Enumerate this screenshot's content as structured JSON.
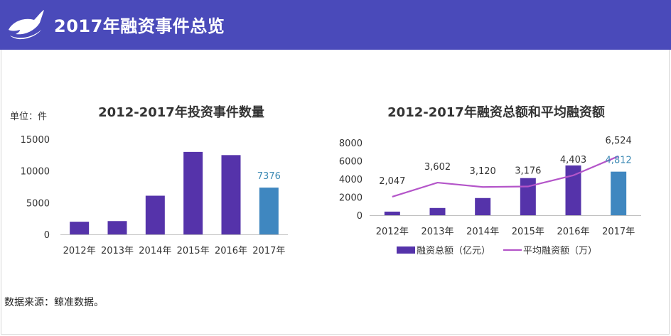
{
  "header": {
    "title": "2017年融资事件总览",
    "logo_icon": "whale-icon"
  },
  "colors": {
    "header_bg": "#4a4aba",
    "bar": "#5533aa",
    "highlight_bar": "#3f87c0",
    "line": "#b455c9",
    "highlight_text": "#3d8ab4"
  },
  "source_text": "数据来源：鲸准数据。",
  "chart_data": [
    {
      "type": "bar",
      "title": "2012-2017年投资事件数量",
      "unit_label": "单位：件",
      "categories": [
        "2012年",
        "2013年",
        "2014年",
        "2015年",
        "2016年",
        "2017年"
      ],
      "values": [
        2000,
        2100,
        6100,
        13000,
        12500,
        7376
      ],
      "highlight_index": 5,
      "highlight_label": "7376",
      "yticks": [
        "0",
        "5000",
        "10000",
        "15000"
      ],
      "ylim": [
        0,
        15000
      ],
      "grid": false
    },
    {
      "type": "bar+line",
      "title": "2012-2017年融资总额和平均融资额",
      "categories": [
        "2012年",
        "2013年",
        "2014年",
        "2015年",
        "2016年",
        "2017年"
      ],
      "bar_series": {
        "name": "融资总额（亿元）",
        "values": [
          400,
          800,
          1900,
          4100,
          5500,
          4812
        ]
      },
      "line_series": {
        "name": "平均融资额（万）",
        "values": [
          2047,
          3602,
          3120,
          3176,
          4403,
          6524
        ],
        "labels": [
          "2,047",
          "3,602",
          "3,120",
          "3,176",
          "4,403",
          "6,524"
        ]
      },
      "highlight_index": 5,
      "highlight_label": "4,812",
      "yticks": [
        "0",
        "2000",
        "4000",
        "6000",
        "8000"
      ],
      "ylim": [
        0,
        8000
      ],
      "legend_position": "bottom",
      "grid": false
    }
  ]
}
